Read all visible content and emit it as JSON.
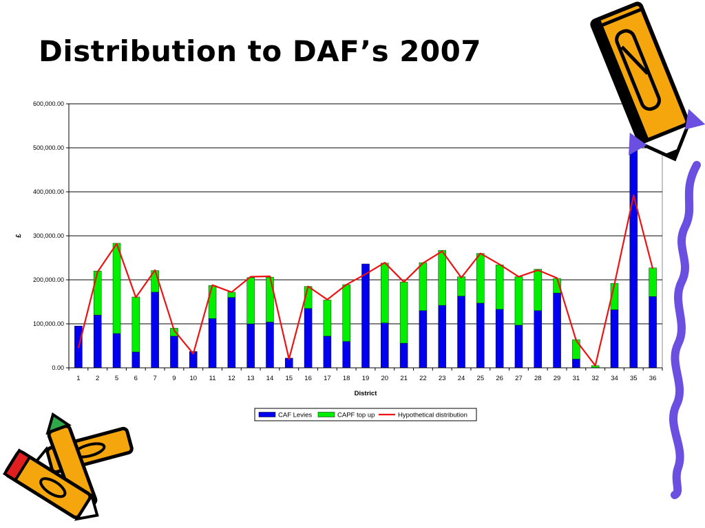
{
  "slide": {
    "title": "Distribution to DAF’s 2007"
  },
  "decorations": [
    "pencil-icon",
    "crayon-icon",
    "wavy-border"
  ],
  "colors": {
    "series_levies": "#0000ee",
    "series_topup": "#00ee00",
    "series_line": "#ee1111",
    "gridline": "#000000",
    "crayon_orange": "#f5a60d",
    "crayon_purple": "#6b4fe0"
  },
  "chart_data": {
    "type": "bar",
    "stacked": true,
    "xlabel": "District",
    "ylabel": "£",
    "ylim": [
      0,
      600000
    ],
    "yticks": [
      0,
      100000,
      200000,
      300000,
      400000,
      500000,
      600000
    ],
    "ytick_labels": [
      "0.00",
      "100,000.00",
      "200,000.00",
      "300,000.00",
      "400,000.00",
      "500,000.00",
      "600,000.00"
    ],
    "grid": true,
    "legend_position": "bottom",
    "categories": [
      "1",
      "2",
      "5",
      "6",
      "7",
      "9",
      "10",
      "11",
      "12",
      "13",
      "14",
      "15",
      "16",
      "17",
      "18",
      "19",
      "20",
      "21",
      "22",
      "23",
      "24",
      "25",
      "26",
      "27",
      "28",
      "29",
      "31",
      "32",
      "34",
      "35",
      "36"
    ],
    "series": [
      {
        "name": "CAF Levies",
        "type": "bar",
        "values": [
          95000,
          120000,
          78000,
          36000,
          172000,
          72000,
          37000,
          112000,
          160000,
          100000,
          104000,
          22000,
          135000,
          72000,
          60000,
          236000,
          102000,
          56000,
          130000,
          142000,
          163000,
          147000,
          133000,
          97000,
          130000,
          170000,
          20000,
          0,
          132000,
          520000,
          162000
        ]
      },
      {
        "name": "CAPF top up",
        "type": "bar",
        "values": [
          0,
          100000,
          205000,
          125000,
          49000,
          18000,
          0,
          75000,
          12000,
          105000,
          102000,
          0,
          50000,
          82000,
          129000,
          0,
          136000,
          139000,
          109000,
          125000,
          44000,
          113000,
          101000,
          110000,
          94000,
          33000,
          44000,
          5000,
          60000,
          0,
          65000
        ]
      },
      {
        "name": "Hypothetical distribution",
        "type": "line",
        "values": [
          45000,
          218000,
          282000,
          160000,
          222000,
          85000,
          32000,
          188000,
          172000,
          207000,
          208000,
          20000,
          185000,
          155000,
          189000,
          213000,
          239000,
          195000,
          238000,
          265000,
          205000,
          260000,
          235000,
          207000,
          222000,
          204000,
          62000,
          5000,
          190000,
          392000,
          225000
        ]
      }
    ]
  }
}
